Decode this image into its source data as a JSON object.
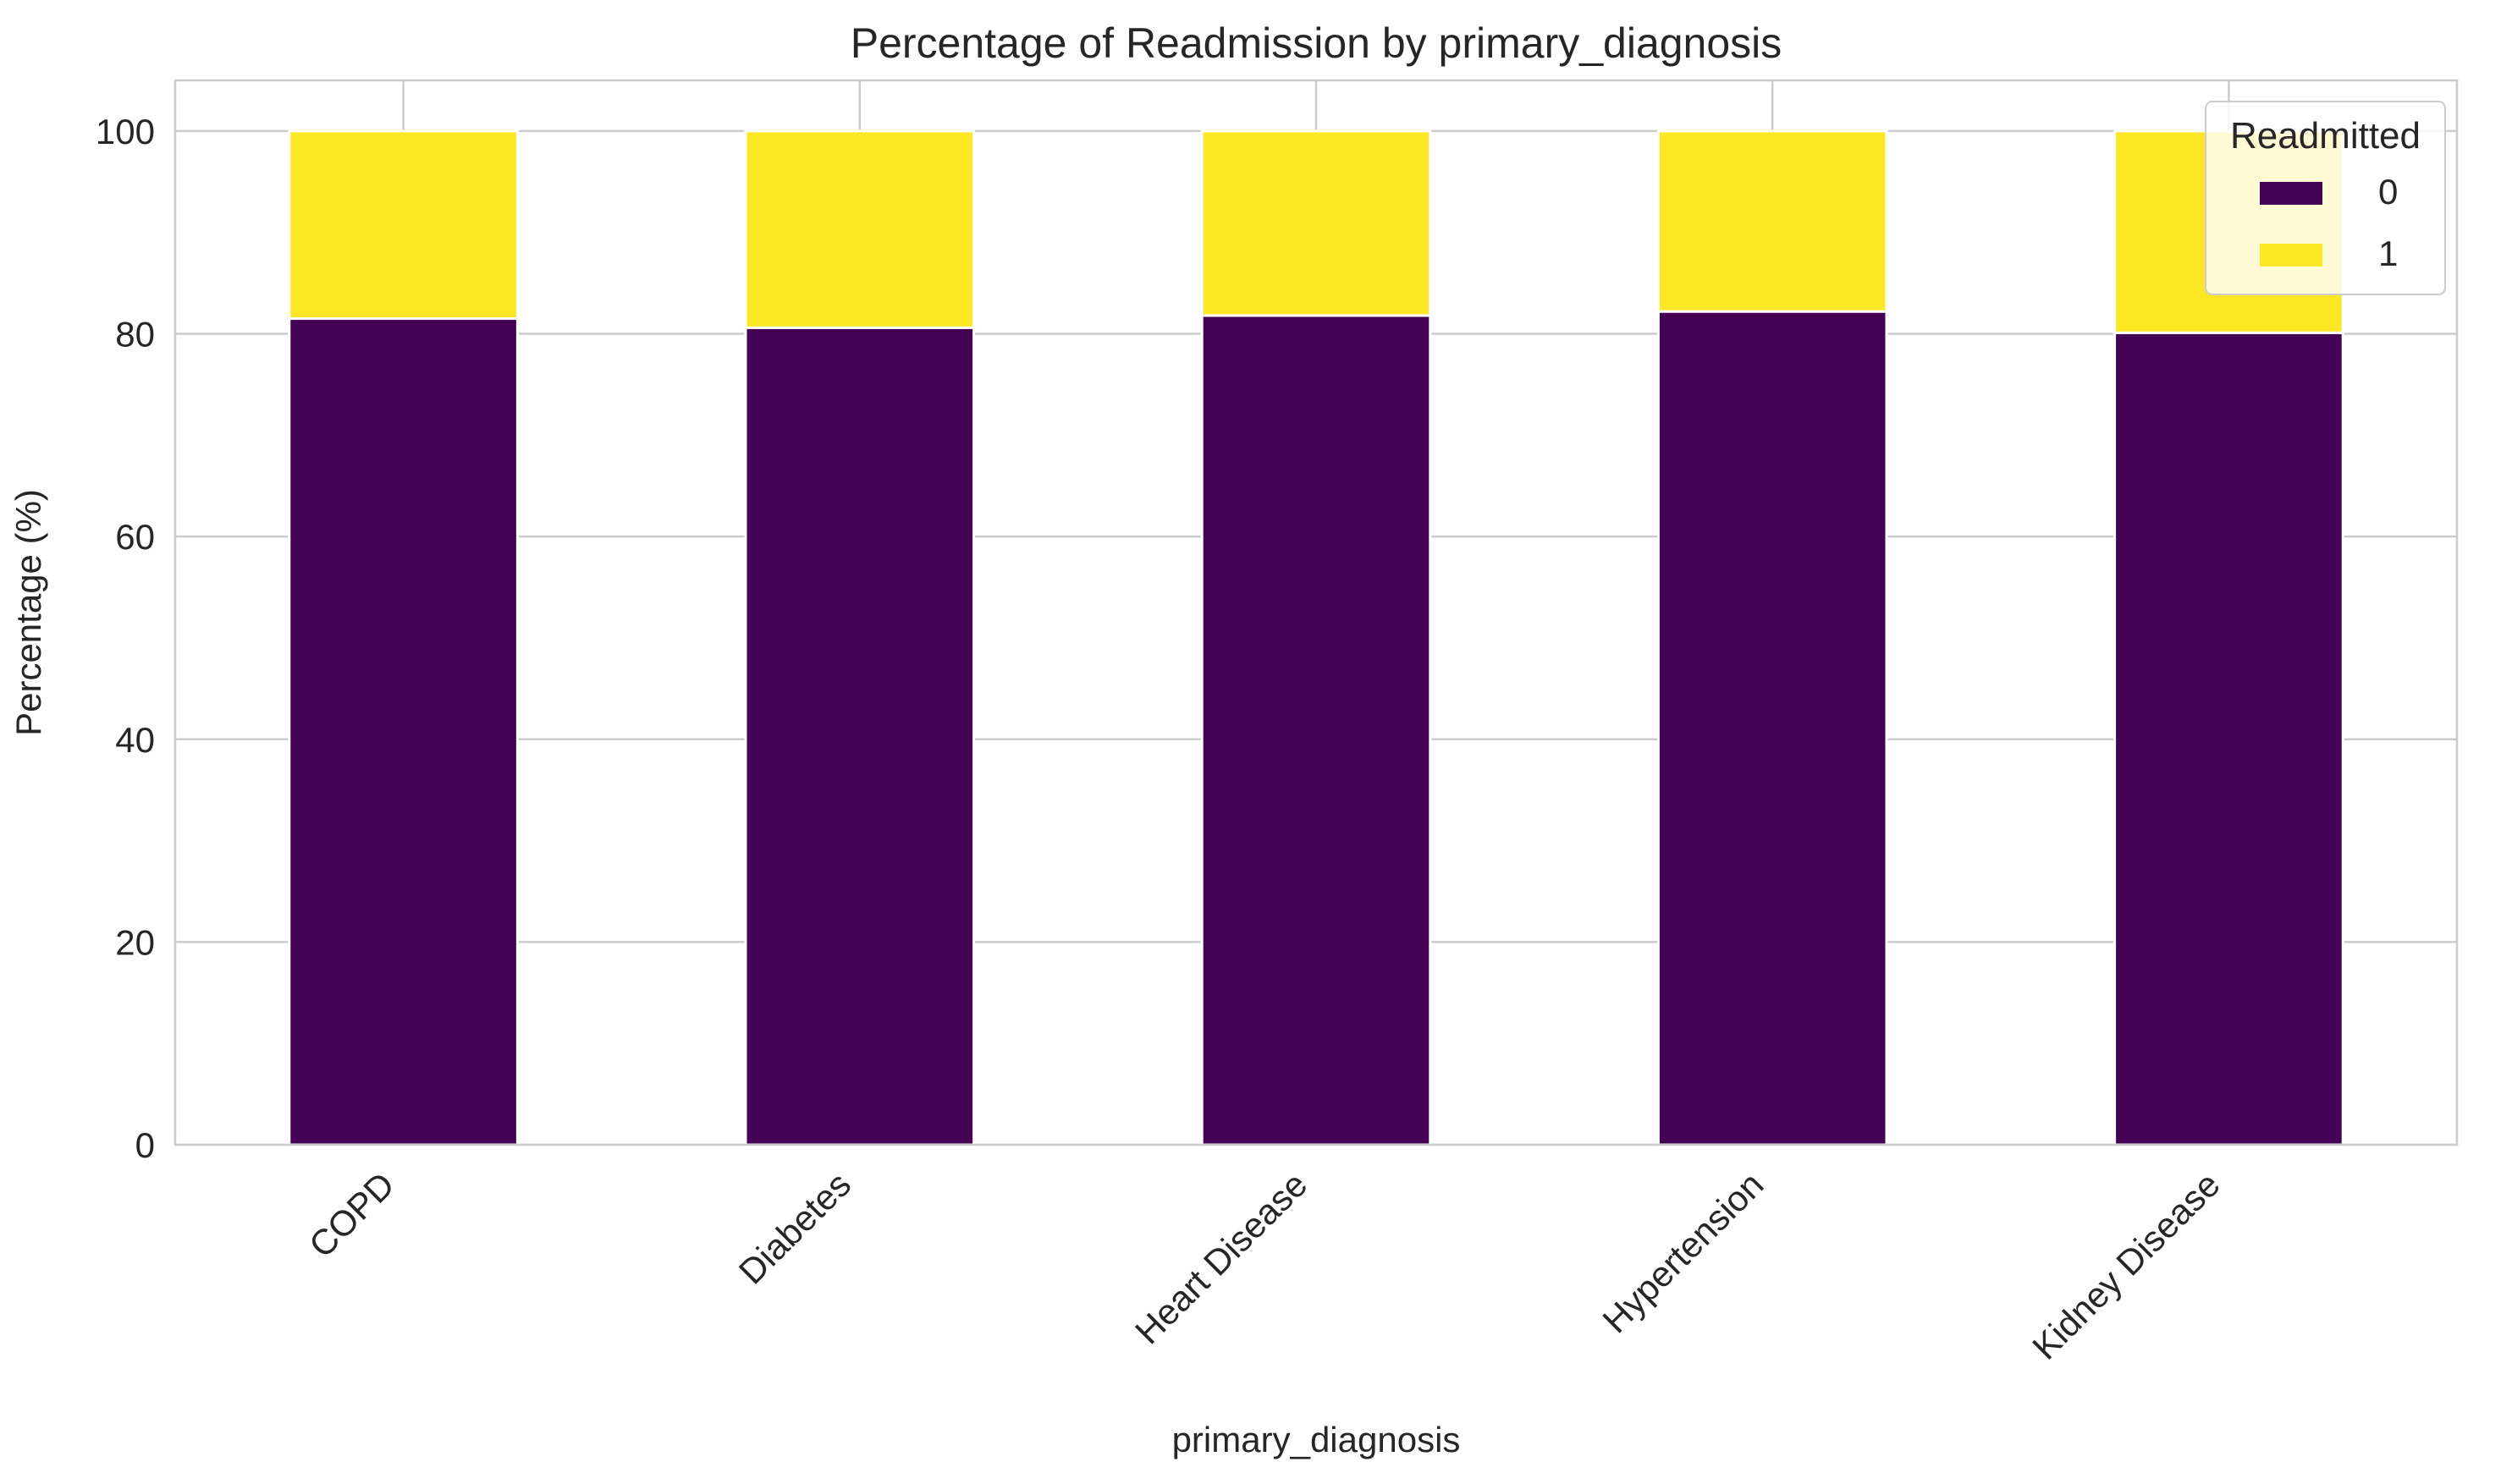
{
  "chart_data": {
    "type": "bar",
    "stacked": true,
    "title": "Percentage of Readmission by primary_diagnosis",
    "xlabel": "primary_diagnosis",
    "ylabel": "Percentage (%)",
    "categories": [
      "COPD",
      "Diabetes",
      "Heart Disease",
      "Hypertension",
      "Kidney Disease"
    ],
    "series": [
      {
        "name": "0",
        "values": [
          81.5,
          80.6,
          81.8,
          82.2,
          80.1
        ],
        "color": "#440154"
      },
      {
        "name": "1",
        "values": [
          18.5,
          19.4,
          18.2,
          17.8,
          19.9
        ],
        "color": "#fde725"
      }
    ],
    "ylim": [
      0,
      105
    ],
    "yticks": [
      0,
      20,
      40,
      60,
      80,
      100
    ],
    "grid": true,
    "legend": {
      "title": "Readmitted",
      "placement": "top-right"
    }
  }
}
